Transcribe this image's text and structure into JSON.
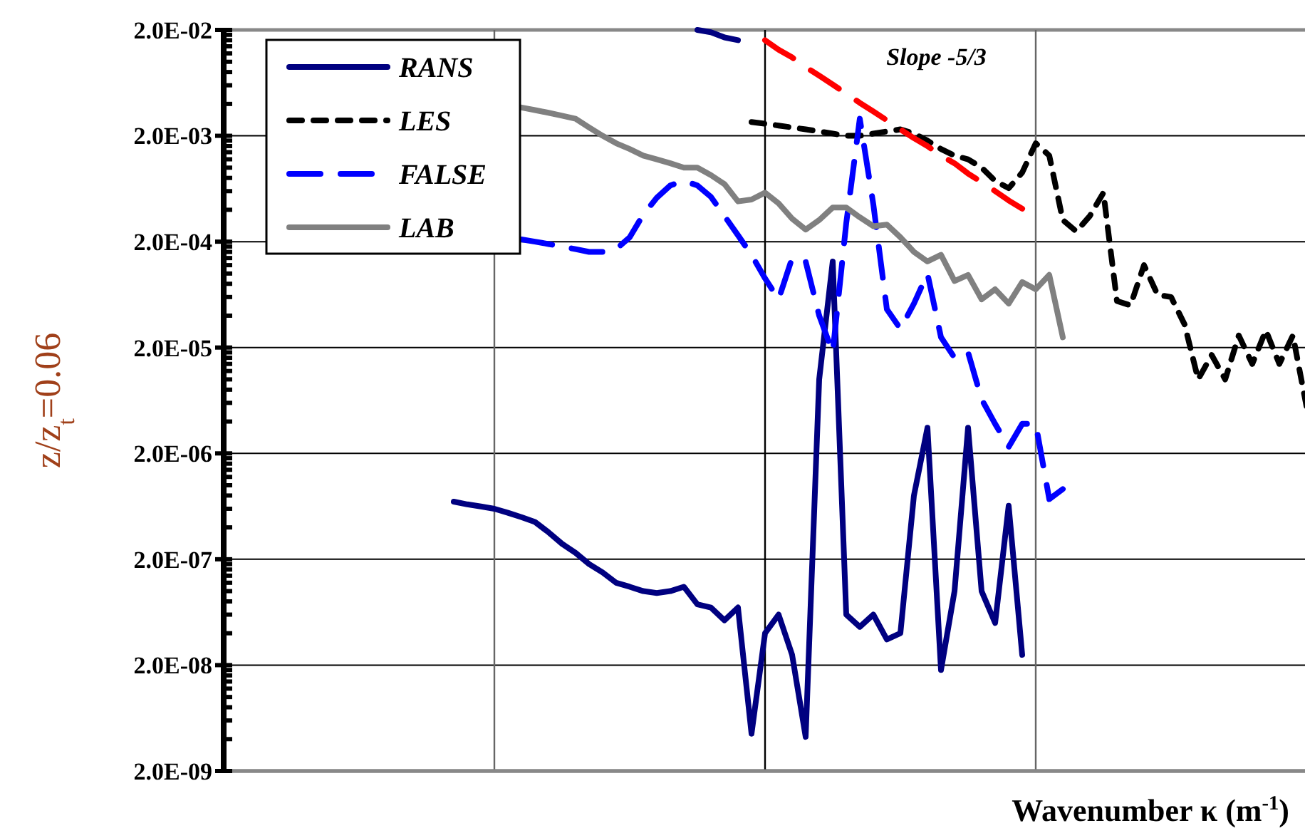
{
  "chart_data": {
    "type": "line",
    "xlabel": "Wavenumber κ (m$^{-1}$)",
    "ylabel": "z/z$_{t}$=0.06",
    "log": "y",
    "categories": [
      null,
      null,
      null,
      null,
      null,
      null,
      null,
      null,
      null,
      null,
      null,
      null,
      null,
      null,
      null,
      null,
      null,
      null,
      null,
      null,
      null,
      null,
      null,
      null,
      null,
      null,
      null,
      null,
      null,
      null,
      null,
      null,
      null,
      null,
      null,
      null,
      null,
      null,
      null,
      null,
      null,
      null,
      null,
      null,
      null,
      null,
      null,
      null,
      null,
      null,
      null,
      null,
      null,
      null,
      null,
      null,
      null,
      null,
      null,
      null,
      null,
      null,
      null,
      null,
      null,
      null,
      null,
      null,
      null,
      null,
      null,
      null,
      null,
      null,
      null,
      null,
      null,
      null,
      null,
      null,
      null
    ],
    "ylim": [
      2e-09,
      0.02
    ],
    "yticks": [
      {
        "value": 2e-09,
        "label": "2.0E-09"
      },
      {
        "value": 2e-08,
        "label": "2.0E-08"
      },
      {
        "value": 2e-07,
        "label": "2.0E-07"
      },
      {
        "value": 2e-06,
        "label": "2.0E-06"
      },
      {
        "value": 2e-05,
        "label": "2.0E-05"
      },
      {
        "value": 0.0002,
        "label": "2.0E-04"
      },
      {
        "value": 0.002,
        "label": "2.0E-03"
      },
      {
        "value": 0.02,
        "label": "2.0E-02"
      }
    ],
    "grid": true,
    "legend": "top left",
    "annotations": [
      "Slope -5/3"
    ],
    "series": [
      {
        "name": "RANS",
        "color": "#000080",
        "line_style": "solid",
        "values": [
          null,
          null,
          null,
          null,
          null,
          null,
          null,
          null,
          null,
          null,
          null,
          null,
          null,
          null,
          null,
          null,
          null,
          7e-07,
          6.6e-07,
          6.3e-07,
          6e-07,
          5.5e-07,
          5e-07,
          4.5e-07,
          3.6e-07,
          2.8e-07,
          2.3e-07,
          1.8e-07,
          1.5e-07,
          1.2e-07,
          1.1e-07,
          1e-07,
          9.6e-08,
          1e-07,
          1.1e-07,
          7.5e-08,
          7e-08,
          5.3e-08,
          7e-08,
          4.5e-09,
          4e-08,
          6e-08,
          2.5e-08,
          4.2e-09,
          1e-05,
          0.00013,
          6e-08,
          4.6e-08,
          6e-08,
          3.5e-08,
          4e-08,
          8e-07,
          3.5e-06,
          1.8e-08,
          1e-07,
          3.5e-06,
          1e-07,
          5e-08,
          6.4e-07,
          2.5e-08,
          null,
          null,
          null,
          null,
          null,
          null,
          null,
          null,
          null,
          null,
          null,
          null,
          null,
          null,
          null,
          null,
          null,
          null,
          null,
          null,
          null
        ]
      },
      {
        "color": "#000080",
        "line_style": "solid",
        "values": [
          null,
          null,
          null,
          null,
          null,
          null,
          null,
          null,
          null,
          null,
          null,
          null,
          null,
          null,
          null,
          null,
          null,
          null,
          null,
          null,
          null,
          null,
          null,
          null,
          null,
          null,
          null,
          null,
          null,
          null,
          null,
          null,
          null,
          null,
          null,
          0.02,
          0.019,
          0.017,
          0.016,
          null,
          null,
          null,
          null,
          null,
          null,
          null,
          null,
          null,
          null,
          null,
          null,
          null,
          null,
          null,
          null,
          null,
          null,
          null,
          null,
          null,
          null,
          null,
          null,
          null,
          null,
          null,
          null,
          null,
          null,
          null,
          null,
          null,
          null,
          null,
          null,
          null,
          null,
          null,
          null,
          null,
          null
        ]
      },
      {
        "name": "LES",
        "color": "#000000",
        "line_style": "dotted",
        "values": [
          null,
          null,
          null,
          null,
          null,
          null,
          null,
          null,
          null,
          null,
          null,
          null,
          null,
          null,
          null,
          null,
          null,
          null,
          null,
          null,
          null,
          null,
          null,
          null,
          null,
          null,
          null,
          null,
          null,
          null,
          null,
          null,
          null,
          null,
          null,
          null,
          null,
          null,
          null,
          0.0027,
          0.0026,
          0.0025,
          0.0024,
          0.0023,
          0.0022,
          0.0021,
          0.002,
          0.002,
          0.0021,
          0.0022,
          0.0023,
          0.0021,
          0.0018,
          0.0015,
          0.0013,
          0.0012,
          0.001,
          0.00075,
          0.00064,
          0.0009,
          0.0017,
          0.0013,
          0.00032,
          0.00025,
          0.00035,
          0.00058,
          5.5e-05,
          5e-05,
          0.00012,
          6.3e-05,
          6e-05,
          3.3e-05,
          1e-05,
          1.7e-05,
          1e-05,
          2.6e-05,
          1.4e-05,
          2.9e-05,
          1.4e-05,
          2.6e-05,
          5.6e-06
        ]
      },
      {
        "name": "FALSE",
        "color": "#0000ff",
        "line_style": "dashed",
        "values": [
          null,
          null,
          null,
          null,
          null,
          null,
          null,
          null,
          null,
          null,
          null,
          null,
          null,
          null,
          null,
          null,
          null,
          null,
          null,
          null,
          null,
          null,
          0.00021,
          0.0002,
          0.00019,
          0.00018,
          0.00017,
          0.00016,
          0.00016,
          0.00017,
          0.00022,
          0.00036,
          0.00052,
          0.00068,
          0.00075,
          0.00068,
          0.00053,
          0.00035,
          0.00023,
          0.00015,
          9e-05,
          5.7e-05,
          0.00014,
          0.00013,
          4e-05,
          1.8e-05,
          0.0003,
          0.0029,
          0.00045,
          4.6e-05,
          3e-05,
          5.2e-05,
          0.0001,
          2.5e-05,
          1.6e-05,
          1.8e-05,
          6.5e-06,
          3.8e-06,
          2.3e-06,
          3.8e-06,
          3.8e-06,
          7.4e-07,
          9.2e-07,
          null,
          null,
          null,
          null,
          null,
          null,
          null,
          null,
          null,
          null,
          null,
          null,
          null,
          null,
          null,
          null,
          null,
          null
        ]
      },
      {
        "name": "LAB",
        "color": "#808080",
        "line_style": "solid",
        "values": [
          null,
          null,
          null,
          null,
          null,
          null,
          null,
          null,
          null,
          null,
          null,
          null,
          null,
          null,
          null,
          null,
          null,
          null,
          null,
          null,
          null,
          null,
          0.0037,
          0.0035,
          0.0033,
          0.0031,
          0.0029,
          0.0024,
          0.002,
          0.0017,
          0.0015,
          0.0013,
          0.0012,
          0.0011,
          0.001,
          0.001,
          0.00085,
          0.0007,
          0.00048,
          0.0005,
          0.00058,
          0.00046,
          0.00033,
          0.00026,
          0.00032,
          0.00042,
          0.00042,
          0.00034,
          0.00028,
          0.00029,
          0.00022,
          0.00016,
          0.00013,
          0.00015,
          8.5e-05,
          9.7e-05,
          5.7e-05,
          7.1e-05,
          5.2e-05,
          8.3e-05,
          7.1e-05,
          9.7e-05,
          2.5e-05,
          null,
          null,
          null,
          null,
          null,
          null,
          null,
          null,
          null,
          null,
          null,
          null,
          null,
          null,
          null,
          null,
          null,
          null
        ]
      },
      {
        "color": "#ff0000",
        "line_style": "dashed",
        "values": [
          null,
          null,
          null,
          null,
          null,
          null,
          null,
          null,
          null,
          null,
          null,
          null,
          null,
          null,
          null,
          null,
          null,
          null,
          null,
          null,
          null,
          null,
          null,
          null,
          null,
          null,
          null,
          null,
          null,
          null,
          null,
          null,
          null,
          null,
          null,
          null,
          null,
          null,
          null,
          null,
          0.016,
          0.013,
          0.011,
          0.0089,
          0.0074,
          0.0061,
          0.005,
          0.0041,
          0.0034,
          0.0028,
          0.0023,
          0.0019,
          0.0016,
          0.0013,
          0.0011,
          0.00088,
          0.00073,
          0.0006,
          0.00049,
          0.00041,
          null,
          null,
          null,
          null,
          null,
          null,
          null,
          null,
          null,
          null,
          null,
          null,
          null,
          null,
          null,
          null,
          null,
          null,
          null,
          null,
          null
        ]
      }
    ]
  }
}
